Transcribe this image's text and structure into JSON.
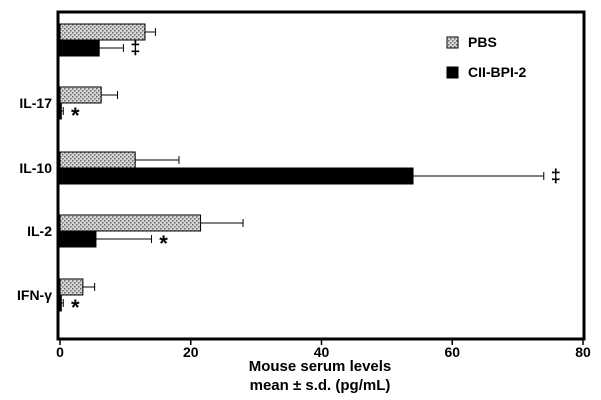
{
  "chart_data": {
    "type": "bar",
    "orientation": "horizontal",
    "categories": [
      "IFN-γ",
      "IL-2",
      "IL-10",
      "IL-17",
      ""
    ],
    "series": [
      {
        "name": "PBS",
        "values": [
          3.5,
          21.5,
          11.5,
          6.3,
          13.0
        ],
        "errors": [
          1.8,
          6.5,
          6.7,
          2.5,
          1.6
        ],
        "fill": "#c8c8c8",
        "pattern": "dotted-hatch"
      },
      {
        "name": "CII-BPI-2",
        "values": [
          0.2,
          5.5,
          54.0,
          0.2,
          6.0
        ],
        "errors": [
          0.3,
          8.5,
          20.0,
          0.3,
          3.7
        ],
        "fill": "#000000",
        "pattern": "solid"
      }
    ],
    "significance": [
      {
        "category_index": 0,
        "label": "*"
      },
      {
        "category_index": 1,
        "label": "*"
      },
      {
        "category_index": 2,
        "label": "‡"
      },
      {
        "category_index": 3,
        "label": "*"
      },
      {
        "category_index": 4,
        "label": "‡"
      }
    ],
    "xlabel_line1": "Mouse serum levels",
    "xlabel_line2": "mean ± s.d. (pg/mL)",
    "xlim": [
      0,
      80
    ],
    "xticks": [
      0,
      20,
      40,
      60,
      80
    ],
    "grid": false,
    "legend_position": "top-right"
  }
}
